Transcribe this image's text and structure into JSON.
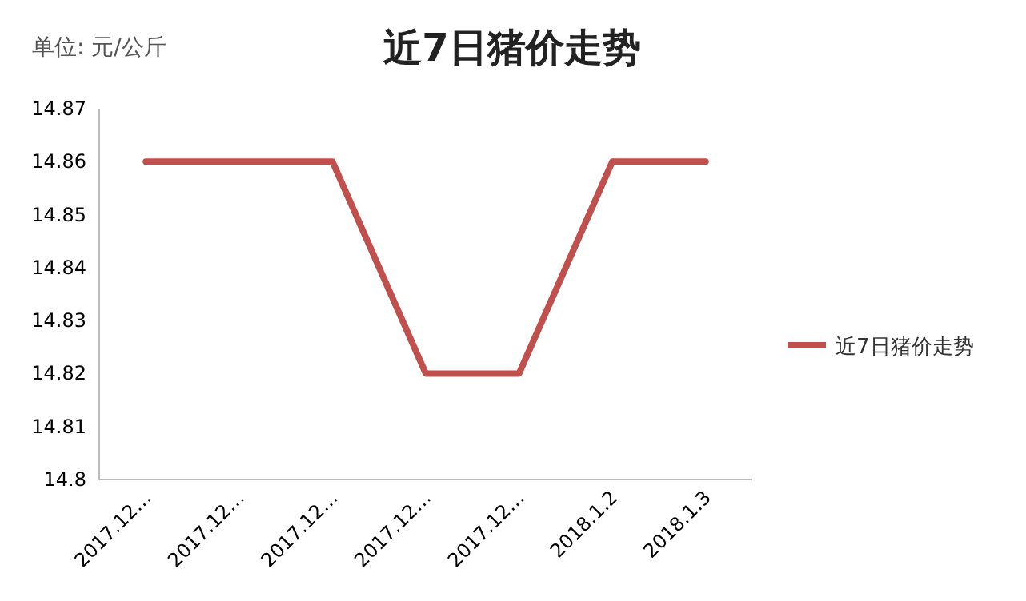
{
  "chart_data": {
    "type": "line",
    "title": "近7日猪价走势",
    "annotations": [
      "单位: 元/公斤"
    ],
    "categories": [
      "2017.12…",
      "2017.12…",
      "2017.12…",
      "2017.12…",
      "2017.12…",
      "2018.1.2",
      "2018.1.3"
    ],
    "series": [
      {
        "name": "近7日猪价走势",
        "color": "#c0504d",
        "values": [
          14.86,
          14.86,
          14.86,
          14.82,
          14.82,
          14.86,
          14.86
        ]
      }
    ],
    "ylim": [
      14.8,
      14.87
    ],
    "yticks": [
      14.8,
      14.81,
      14.82,
      14.83,
      14.84,
      14.85,
      14.86,
      14.87
    ],
    "legend": "right"
  }
}
